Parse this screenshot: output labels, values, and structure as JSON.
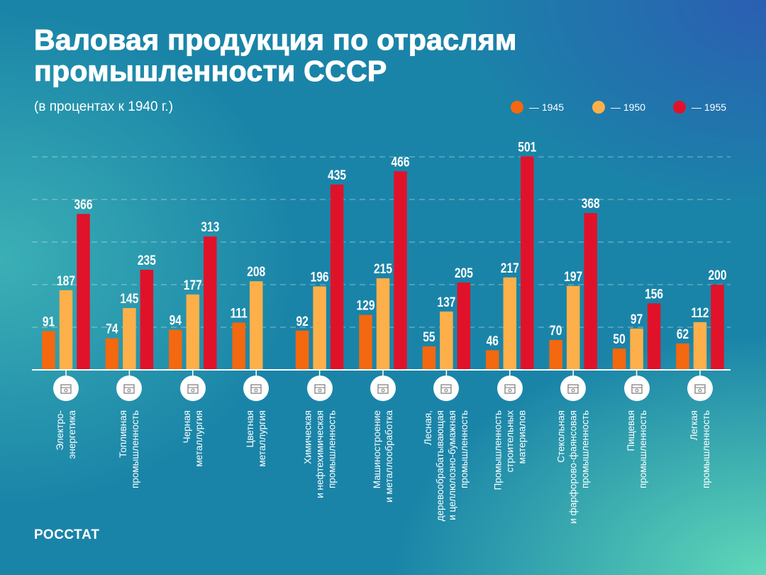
{
  "title_line1": "Валовая продукция по отраслям",
  "title_line2": "промышленности СССР",
  "subtitle": "(в процентах к 1940 г.)",
  "logo": "РОССТАТ",
  "chart_data": {
    "type": "bar",
    "title": "Валовая продукция по отраслям промышленности СССР",
    "subtitle": "(в процентах к 1940 г.)",
    "ylim": [
      0,
      500
    ],
    "grid": true,
    "legend_position": "top-right",
    "categories": [
      [
        "Электро-",
        "энергетика"
      ],
      [
        "Топливная",
        "промышленность"
      ],
      [
        "Черная",
        "металлургия"
      ],
      [
        "Цветная",
        "металлургия"
      ],
      [
        "Химическая",
        "и нефтехимическая",
        "промышленность"
      ],
      [
        "Машиностроение",
        "и металлообработка"
      ],
      [
        "Лесная,",
        "деревообрабатывающая",
        "и целлюлозно-бумажная",
        "промышленность"
      ],
      [
        "Промышленность",
        "строительных",
        "материалов"
      ],
      [
        "Стекольная",
        "и фарфорово-фаянсовая",
        "промышленность"
      ],
      [
        "Пищевая",
        "промышленность"
      ],
      [
        "Легкая",
        "промышленность"
      ]
    ],
    "icons": [
      "power-plant-icon",
      "fuel-industry-icon",
      "steel-beam-icon",
      "metal-casting-icon",
      "chemistry-icon",
      "machinery-icon",
      "paper-mill-icon",
      "construction-crane-icon",
      "teacup-icon",
      "milk-bottle-icon",
      "coat-icon"
    ],
    "series": [
      {
        "name": "— 1945",
        "color": "#f4680f",
        "values": [
          91,
          74,
          94,
          111,
          92,
          129,
          55,
          46,
          70,
          50,
          62
        ]
      },
      {
        "name": "— 1950",
        "color": "#fdb04a",
        "values": [
          187,
          145,
          177,
          208,
          196,
          215,
          137,
          217,
          197,
          97,
          112
        ]
      },
      {
        "name": "— 1955",
        "color": "#e0122a",
        "values": [
          366,
          235,
          313,
          null,
          435,
          466,
          205,
          501,
          368,
          156,
          200
        ]
      }
    ]
  }
}
